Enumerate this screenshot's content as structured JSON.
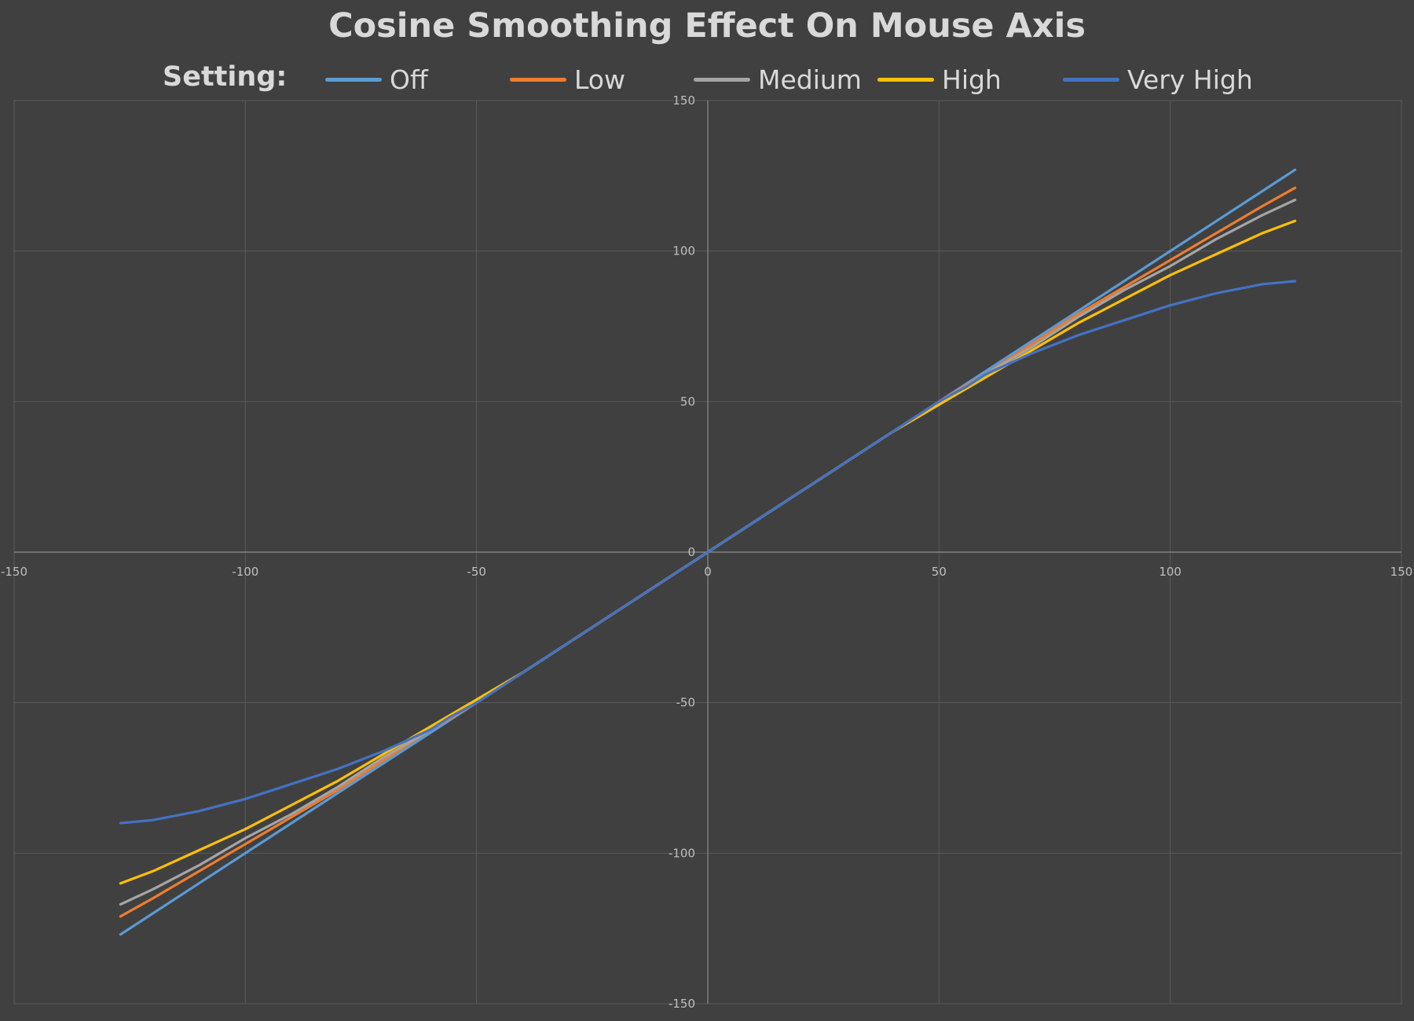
{
  "chart_data": {
    "type": "line",
    "title": "Cosine Smoothing Effect On Mouse Axis",
    "legend_prefix": "Setting:",
    "legend_position": "top",
    "xlim": [
      -150,
      150
    ],
    "ylim": [
      -150,
      150
    ],
    "x_ticks": [
      -150,
      -100,
      -50,
      0,
      50,
      100,
      150
    ],
    "y_ticks": [
      -150,
      -100,
      -50,
      0,
      50,
      100,
      150
    ],
    "grid": true,
    "background": "#404040",
    "series": [
      {
        "name": "Off",
        "color": "#5b9bd5",
        "x": [
          -127,
          -100,
          -75,
          -50,
          -30,
          0,
          30,
          50,
          75,
          100,
          127
        ],
        "y": [
          -127,
          -100,
          -75,
          -50,
          -30,
          0,
          30,
          50,
          75,
          100,
          127
        ]
      },
      {
        "name": "Low",
        "color": "#ed7d31",
        "x": [
          -127,
          -120,
          -110,
          -100,
          -90,
          -80,
          -70,
          -60,
          -50,
          -40,
          -30,
          0,
          30,
          40,
          50,
          60,
          70,
          80,
          90,
          100,
          110,
          120,
          127
        ],
        "y": [
          -121,
          -115,
          -106,
          -97,
          -88,
          -79,
          -69,
          -59,
          -50,
          -40,
          -30,
          0,
          30,
          40,
          50,
          59,
          69,
          79,
          88,
          97,
          106,
          115,
          121
        ]
      },
      {
        "name": "Medium",
        "color": "#a5a5a5",
        "x": [
          -127,
          -120,
          -110,
          -100,
          -90,
          -80,
          -70,
          -60,
          -50,
          -40,
          -30,
          0,
          30,
          40,
          50,
          60,
          70,
          80,
          90,
          100,
          110,
          120,
          127
        ],
        "y": [
          -117,
          -112,
          -104,
          -95,
          -87,
          -78,
          -68,
          -59,
          -49,
          -40,
          -30,
          0,
          30,
          40,
          49,
          59,
          68,
          78,
          87,
          95,
          104,
          112,
          117
        ]
      },
      {
        "name": "High",
        "color": "#ffc000",
        "x": [
          -127,
          -120,
          -110,
          -100,
          -90,
          -80,
          -70,
          -60,
          -50,
          -40,
          -30,
          0,
          30,
          40,
          50,
          60,
          70,
          80,
          90,
          100,
          110,
          120,
          127
        ],
        "y": [
          -110,
          -106,
          -99,
          -92,
          -84,
          -76,
          -67,
          -58,
          -49,
          -40,
          -30,
          0,
          30,
          40,
          49,
          58,
          67,
          76,
          84,
          92,
          99,
          106,
          110
        ]
      },
      {
        "name": "Very High",
        "color": "#4472c4",
        "x": [
          -127,
          -120,
          -110,
          -100,
          -90,
          -80,
          -70,
          -60,
          -56,
          -50,
          -43,
          -40,
          -30,
          0,
          30,
          40,
          43,
          50,
          56,
          60,
          70,
          80,
          90,
          100,
          110,
          120,
          127
        ],
        "y": [
          -90,
          -89,
          -86,
          -82,
          -77,
          -72,
          -66,
          -59,
          -55,
          -50,
          -43,
          -40,
          -30,
          0,
          30,
          40,
          43,
          50,
          55,
          59,
          66,
          72,
          77,
          82,
          86,
          89,
          90
        ]
      }
    ]
  }
}
